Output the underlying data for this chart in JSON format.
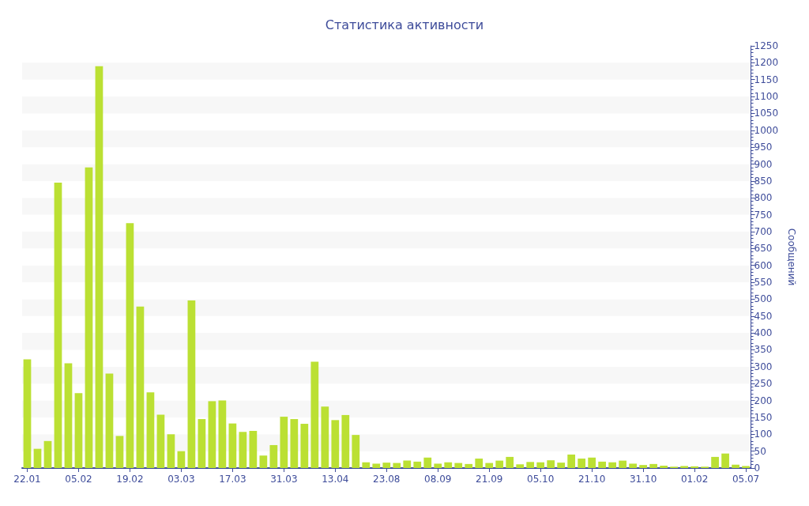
{
  "chart_data": {
    "type": "bar",
    "title": "Статистика активности",
    "ylabel": "Сообщений",
    "categories": [
      "22.01",
      null,
      null,
      null,
      null,
      "05.02",
      null,
      null,
      null,
      null,
      "19.02",
      null,
      null,
      null,
      null,
      "03.03",
      null,
      null,
      null,
      null,
      "17.03",
      null,
      null,
      null,
      null,
      "31.03",
      null,
      null,
      null,
      null,
      "13.04",
      null,
      null,
      null,
      null,
      "23.08",
      null,
      null,
      null,
      null,
      "08.09",
      null,
      null,
      null,
      null,
      "21.09",
      null,
      null,
      null,
      null,
      "05.10",
      null,
      null,
      null,
      null,
      "21.10",
      null,
      null,
      null,
      null,
      "31.10",
      null,
      null,
      null,
      null,
      "01.02",
      null,
      null,
      null,
      null,
      "05.07"
    ],
    "values": [
      322,
      57,
      80,
      845,
      310,
      222,
      890,
      1190,
      280,
      95,
      725,
      478,
      224,
      158,
      100,
      50,
      496,
      145,
      198,
      200,
      132,
      107,
      110,
      37,
      68,
      152,
      145,
      131,
      315,
      182,
      142,
      157,
      98,
      17,
      13,
      16,
      15,
      22,
      19,
      31,
      13,
      17,
      15,
      12,
      28,
      15,
      22,
      33,
      11,
      18,
      17,
      23,
      16,
      40,
      28,
      31,
      19,
      17,
      22,
      13,
      9,
      12,
      7,
      4,
      6,
      5,
      4,
      33,
      43,
      10,
      6
    ],
    "color": "#bbe033",
    "ylim": [
      0,
      1250
    ],
    "yticks": [
      0,
      50,
      100,
      150,
      200,
      250,
      300,
      350,
      400,
      450,
      500,
      550,
      600,
      650,
      700,
      750,
      800,
      850,
      900,
      950,
      1000,
      1050,
      1100,
      1150,
      1200,
      1250
    ]
  }
}
